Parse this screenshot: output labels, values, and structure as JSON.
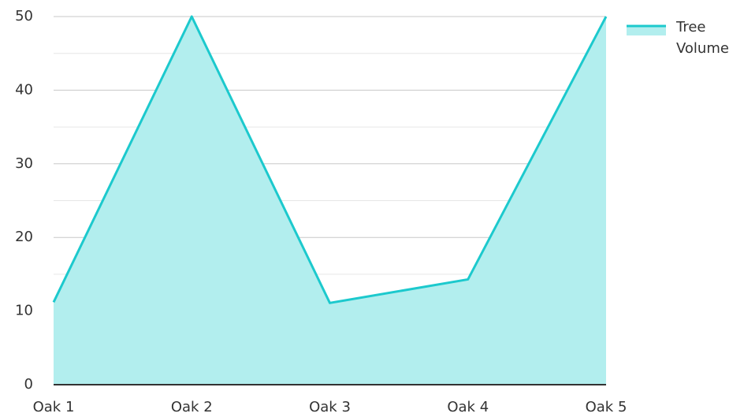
{
  "chart_data": {
    "type": "area",
    "categories": [
      "Oak 1",
      "Oak 2",
      "Oak 3",
      "Oak 4",
      "Oak 5"
    ],
    "series": [
      {
        "name": "Tree Volume",
        "color": "#1cc9cd",
        "fill": "#b2eeee",
        "values": [
          11.2,
          50,
          11.1,
          14.3,
          50
        ]
      }
    ],
    "ylim": [
      0,
      50
    ],
    "yticks": [
      0,
      10,
      20,
      30,
      40,
      50
    ],
    "minor_yticks": [
      5,
      15,
      25,
      35,
      45
    ],
    "grid": true,
    "legend": "right"
  }
}
